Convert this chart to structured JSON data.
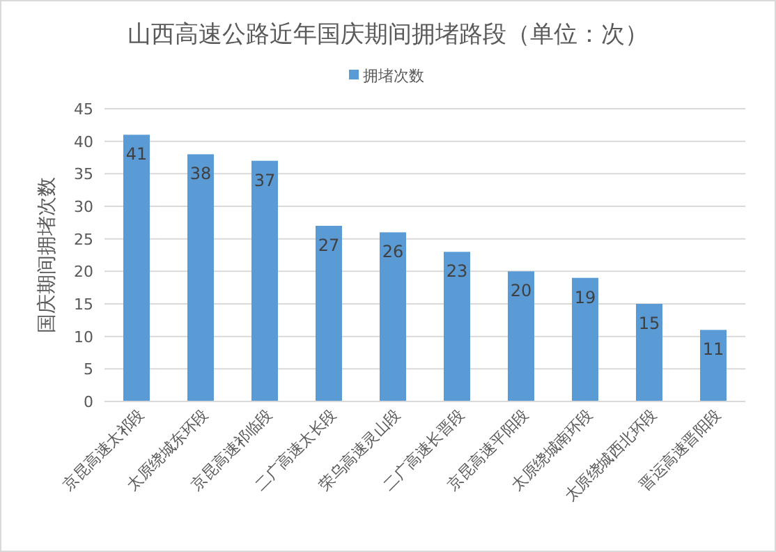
{
  "chart_data": {
    "type": "bar",
    "title": "山西高速公路近年国庆期间拥堵路段（单位：次）",
    "ylabel": "国庆期间拥堵次数",
    "categories": [
      "京昆高速太祁段",
      "太原绕城东环段",
      "京昆高速祁临段",
      "二广高速太长段",
      "荣乌高速灵山段",
      "二广高速长晋段",
      "京昆高速平阳段",
      "太原绕城南环段",
      "太原绕城西北环段",
      "晋运高速晋阳段"
    ],
    "series": [
      {
        "name": "拥堵次数",
        "color": "#5b9bd5",
        "values": [
          41,
          38,
          37,
          27,
          26,
          23,
          20,
          19,
          15,
          11
        ]
      }
    ],
    "ylim": [
      0,
      45
    ],
    "yticks": [
      0,
      5,
      10,
      15,
      20,
      25,
      30,
      35,
      40,
      45
    ],
    "grid": "y",
    "legend": "top",
    "data_labels": true
  }
}
